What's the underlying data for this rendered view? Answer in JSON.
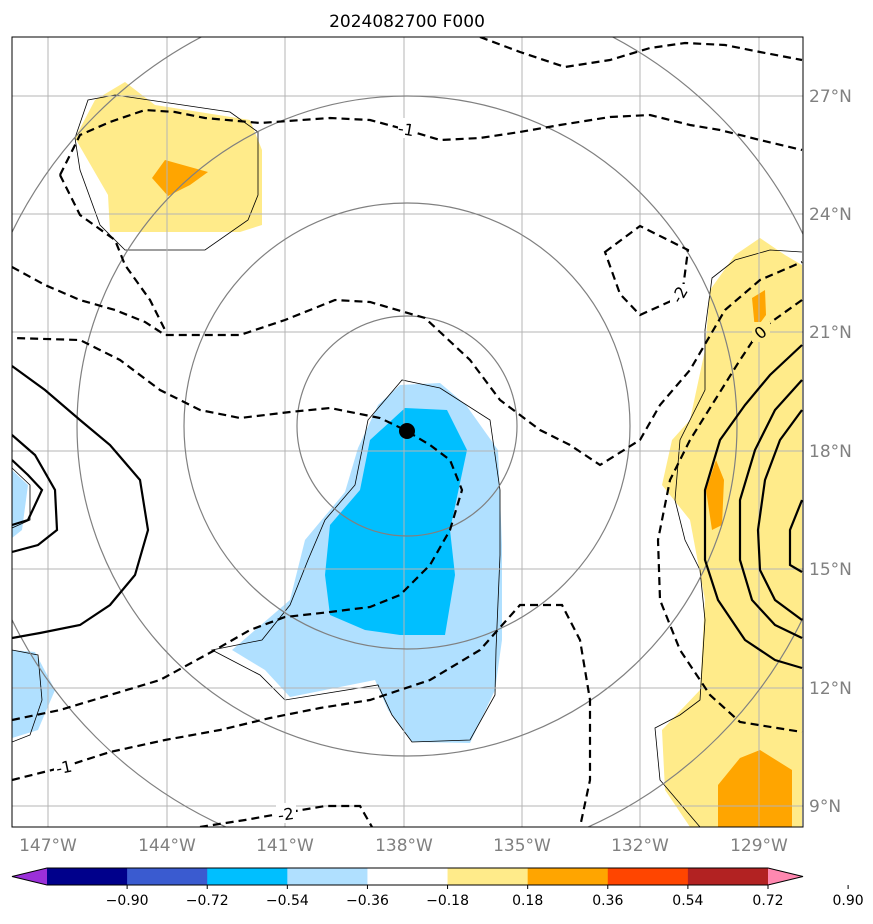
{
  "title": "2024082700 F000",
  "longitude_ticks": [
    "147°W",
    "144°W",
    "141°W",
    "138°W",
    "135°W",
    "132°W",
    "129°W"
  ],
  "latitude_ticks": [
    "27°N",
    "24°N",
    "21°N",
    "18°N",
    "15°N",
    "12°N",
    "9°N"
  ],
  "contour_labels": [
    "-1",
    "-2",
    "-1",
    "-2",
    "0"
  ],
  "colorbar": {
    "ticks": [
      "−0.90",
      "−0.72",
      "−0.54",
      "−0.36",
      "−0.18",
      "0.18",
      "0.36",
      "0.54",
      "0.72",
      "0.90"
    ],
    "colors": [
      "#9b30d9",
      "#00008b",
      "#3a5bd0",
      "#00bfff",
      "#b0e0ff",
      "#ffffff",
      "#ffeb8a",
      "#ffa500",
      "#ff4500",
      "#b22222",
      "#ff88b0"
    ]
  },
  "storm_center": {
    "lon": "138°W",
    "lat": "18.5°N"
  }
}
